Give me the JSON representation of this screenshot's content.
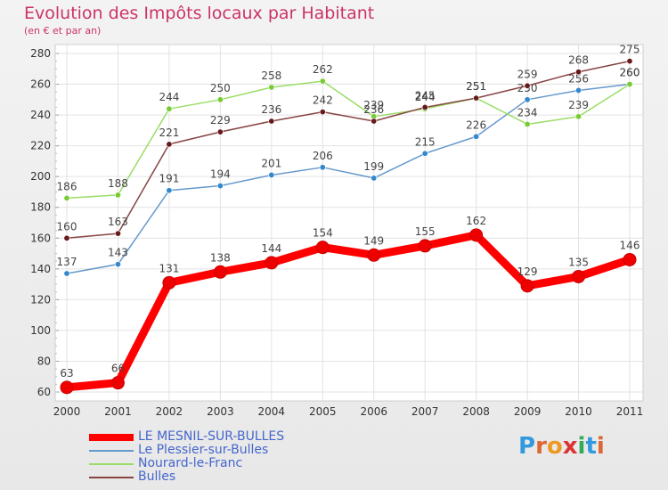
{
  "header": {
    "title": "Evolution des Impôts locaux par Habitant",
    "subtitle": "(en € et par an)"
  },
  "logo": {
    "text": "Proxiti",
    "letters": [
      "P",
      "r",
      "o",
      "x",
      "i",
      "t",
      "i"
    ],
    "colors": [
      "#3399dd",
      "#dd6633",
      "#ee9922",
      "#dd3333",
      "#33aa55",
      "#3399dd",
      "#dd6633"
    ]
  },
  "chart_data": {
    "type": "line",
    "title": "Evolution des Impôts locaux par Habitant",
    "subtitle": "(en € et par an)",
    "xlabel": "",
    "ylabel": "",
    "x": [
      "2000",
      "2001",
      "2002",
      "2003",
      "2004",
      "2005",
      "2006",
      "2007",
      "2008",
      "2009",
      "2010",
      "2011"
    ],
    "ylim": [
      60,
      280
    ],
    "yticks": [
      60,
      80,
      100,
      120,
      140,
      160,
      180,
      200,
      220,
      240,
      260,
      280
    ],
    "grid": true,
    "legend_position": "bottom-left",
    "series": [
      {
        "name": "LE MESNIL-SUR-BULLES",
        "color": "#ff0000",
        "thick": true,
        "values": [
          63,
          66,
          131,
          138,
          144,
          154,
          149,
          155,
          162,
          129,
          135,
          146
        ],
        "labels": [
          "63",
          "66",
          "131",
          "138",
          "144",
          "154",
          "149",
          "155",
          "162",
          "129",
          "135",
          "146"
        ]
      },
      {
        "name": "Le Plessier-sur-Bulles",
        "color": "#6699cc",
        "marker": "#3388cc",
        "thick": false,
        "values": [
          137,
          143,
          191,
          194,
          201,
          206,
          199,
          215,
          226,
          250,
          256,
          260
        ],
        "labels": [
          "137",
          "143",
          "191",
          "194",
          "201",
          "206",
          "199",
          "215",
          "226",
          "250",
          "256",
          "260"
        ]
      },
      {
        "name": "Nourard-le-Franc",
        "color": "#99dd66",
        "marker": "#77cc33",
        "thick": false,
        "values": [
          186,
          188,
          244,
          250,
          258,
          262,
          239,
          244,
          251,
          234,
          239,
          260
        ],
        "labels": [
          "186",
          "188",
          "244",
          "250",
          "258",
          "262",
          "239",
          "244",
          "251",
          "234",
          "239",
          "260"
        ]
      },
      {
        "name": "Bulles",
        "color": "#884444",
        "marker": "#661a1a",
        "thick": false,
        "values": [
          160,
          163,
          221,
          229,
          236,
          242,
          236,
          245,
          251,
          259,
          268,
          275
        ],
        "labels": [
          "160",
          "163",
          "221",
          "229",
          "236",
          "242",
          "236",
          "245",
          "251",
          "259",
          "268",
          "275"
        ]
      }
    ]
  }
}
